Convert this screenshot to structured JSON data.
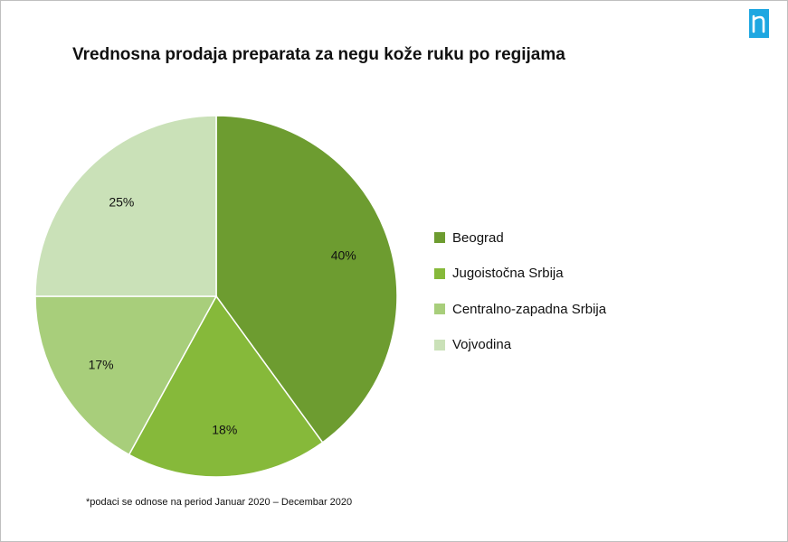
{
  "logo": {
    "icon": "nielsen-n-icon",
    "color": "#1ea7e1"
  },
  "chart_data": {
    "type": "pie",
    "title": "Vrednosna prodaja preparata za negu kože ruku po regijama",
    "unit": "%",
    "legend_position": "right",
    "slices": [
      {
        "name": "Beograd",
        "value": 40,
        "label": "40%",
        "color": "#6d9c30"
      },
      {
        "name": "Jugoistočna Srbija",
        "value": 18,
        "label": "18%",
        "color": "#86b93a"
      },
      {
        "name": "Centralno-zapadna Srbija",
        "value": 17,
        "label": "17%",
        "color": "#a8ce7b"
      },
      {
        "name": "Vojvodina",
        "value": 25,
        "label": "25%",
        "color": "#cae1b8"
      }
    ]
  },
  "footnote": "*podaci se odnose na period Januar 2020 – Decembar 2020"
}
